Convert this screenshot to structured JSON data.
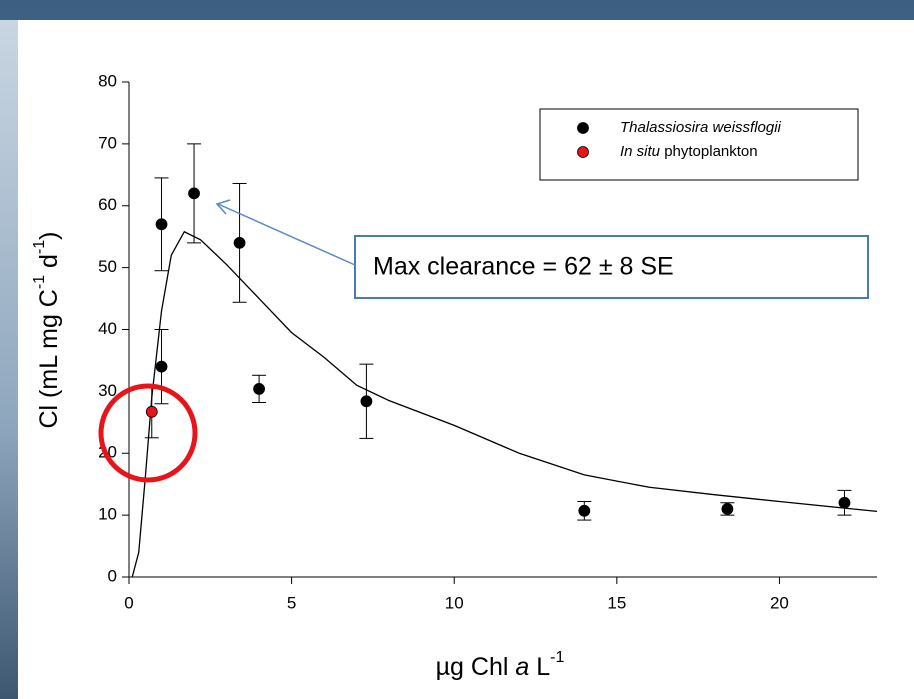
{
  "chart_data": {
    "type": "scatter",
    "xlabel": [
      "µg Chl ",
      "a",
      " L",
      "-1"
    ],
    "ylabel": [
      "Cl (mL mg C",
      "-1",
      " d",
      "-1",
      ")"
    ],
    "xlim": [
      0,
      23
    ],
    "xticks": [
      0,
      5,
      10,
      15,
      20
    ],
    "ylim": [
      0,
      80
    ],
    "yticks": [
      0,
      10,
      20,
      30,
      40,
      50,
      60,
      70,
      80
    ],
    "legend": "upper right",
    "series": [
      {
        "name": "Thalassiosira weissflogii",
        "color": "#000000",
        "x": [
          1.0,
          2.0,
          3.4,
          1.0,
          4.0,
          7.3,
          14.0,
          18.4,
          22.0
        ],
        "values": [
          57,
          62,
          54,
          34,
          30.4,
          28.4,
          10.7,
          11,
          12
        ],
        "errors": [
          7.5,
          8,
          9.6,
          6,
          2.2,
          6,
          1.5,
          1,
          2
        ]
      },
      {
        "name": "In situ phytoplankton",
        "color": "#e8141a",
        "x": [
          0.7
        ],
        "values": [
          26.7
        ],
        "errors": [
          4.2
        ]
      }
    ],
    "curve": {
      "x": [
        0.1,
        0.3,
        0.5,
        0.7,
        1.0,
        1.3,
        1.7,
        2.2,
        3,
        4,
        5,
        6,
        7,
        8,
        10,
        12,
        14,
        16,
        18,
        20,
        23
      ],
      "values": [
        0,
        4,
        16,
        29,
        43,
        52,
        55.8,
        54.5,
        50.5,
        45,
        39.5,
        35.5,
        31,
        28.5,
        24.5,
        20,
        16.5,
        14.5,
        13.3,
        12.2,
        10.6
      ]
    },
    "annotation": "Max clearance = 62 ± 8 SE"
  }
}
